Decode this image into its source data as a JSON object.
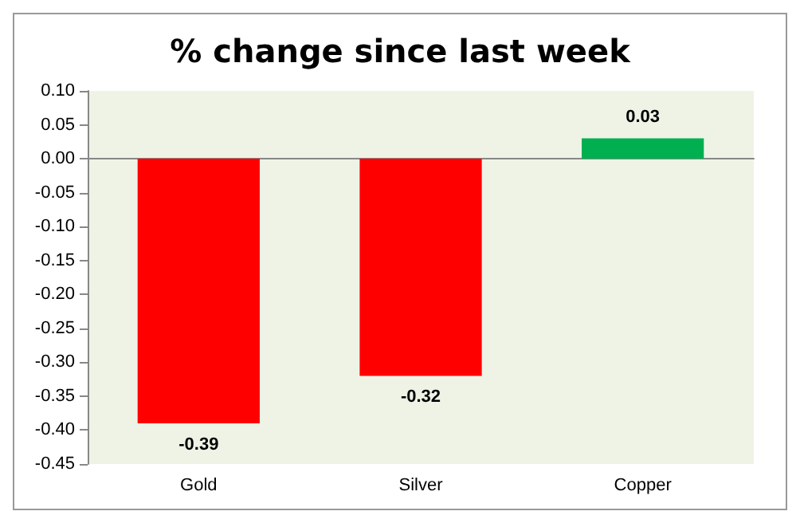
{
  "chart_data": {
    "type": "bar",
    "title": "% change since last week",
    "categories": [
      "Gold",
      "Silver",
      "Copper"
    ],
    "values": [
      -0.39,
      -0.32,
      0.03
    ],
    "colors": [
      "#ff0000",
      "#ff0000",
      "#00b050"
    ],
    "data_labels": true,
    "ylim": [
      -0.45,
      0.1
    ],
    "yticks": [
      {
        "value": -0.45,
        "label": "-0.45"
      },
      {
        "value": -0.4,
        "label": "-0.40"
      },
      {
        "value": -0.35,
        "label": "-0.35"
      },
      {
        "value": -0.3,
        "label": "-0.30"
      },
      {
        "value": -0.25,
        "label": "-0.25"
      },
      {
        "value": -0.2,
        "label": "-0.20"
      },
      {
        "value": -0.15,
        "label": "-0.15"
      },
      {
        "value": -0.1,
        "label": "-0.10"
      },
      {
        "value": -0.05,
        "label": "-0.05"
      },
      {
        "value": 0,
        "label": "0.00"
      },
      {
        "value": 0.05,
        "label": "0.05"
      },
      {
        "value": 0.1,
        "label": "0.10"
      }
    ],
    "tick_labels": true
  }
}
